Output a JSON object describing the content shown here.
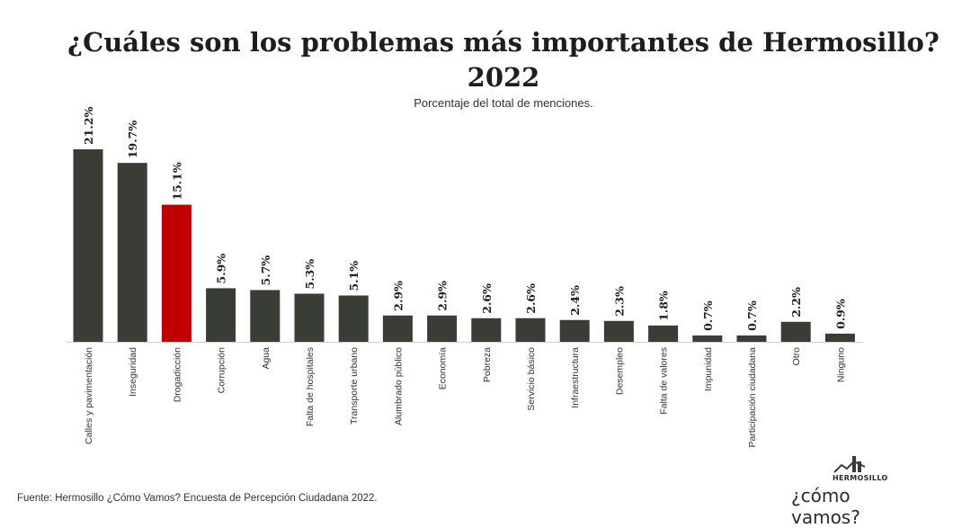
{
  "title": "¿Cuáles son los problemas más importantes de Hermosillo? 2022",
  "subtitle": "Porcentaje del total de menciones.",
  "source": "Fuente: Hermosillo ¿Cómo Vamos? Encuesta de Percepción Ciudadana 2022.",
  "logo": {
    "top_text": "HERMOSILLO",
    "main_text": "¿cómo vamos?"
  },
  "colors": {
    "bar": "#3a3d35",
    "highlight": "#c00000"
  },
  "chart_data": {
    "type": "bar",
    "title": "¿Cuáles son los problemas más importantes de Hermosillo? 2022",
    "subtitle": "Porcentaje del total de menciones.",
    "categories": [
      "Calles y pavimentación",
      "Inseguridad",
      "Drogadicción",
      "Corrupción",
      "Agua",
      "Falta de hospitales",
      "Transporte urbano",
      "Alumbrado público",
      "Economía",
      "Pobreza",
      "Servicio básico",
      "Infraestructura",
      "Desempleo",
      "Falta de valores",
      "Impunidad",
      "Participación ciudadana",
      "Otro",
      "Ninguno"
    ],
    "values": [
      21.2,
      19.7,
      15.1,
      5.9,
      5.7,
      5.3,
      5.1,
      2.9,
      2.9,
      2.6,
      2.6,
      2.4,
      2.3,
      1.8,
      0.7,
      0.7,
      2.2,
      0.9
    ],
    "labels": [
      "21.2%",
      "19.7%",
      "15.1%",
      "5.9%",
      "5.7%",
      "5.3%",
      "5.1%",
      "2.9%",
      "2.9%",
      "2.6%",
      "2.6%",
      "2.4%",
      "2.3%",
      "1.8%",
      "0.7%",
      "0.7%",
      "2.2%",
      "0.9%"
    ],
    "highlight_category": "Drogadicción",
    "ylim": [
      0,
      21.2
    ],
    "grid": false,
    "legend": false
  }
}
